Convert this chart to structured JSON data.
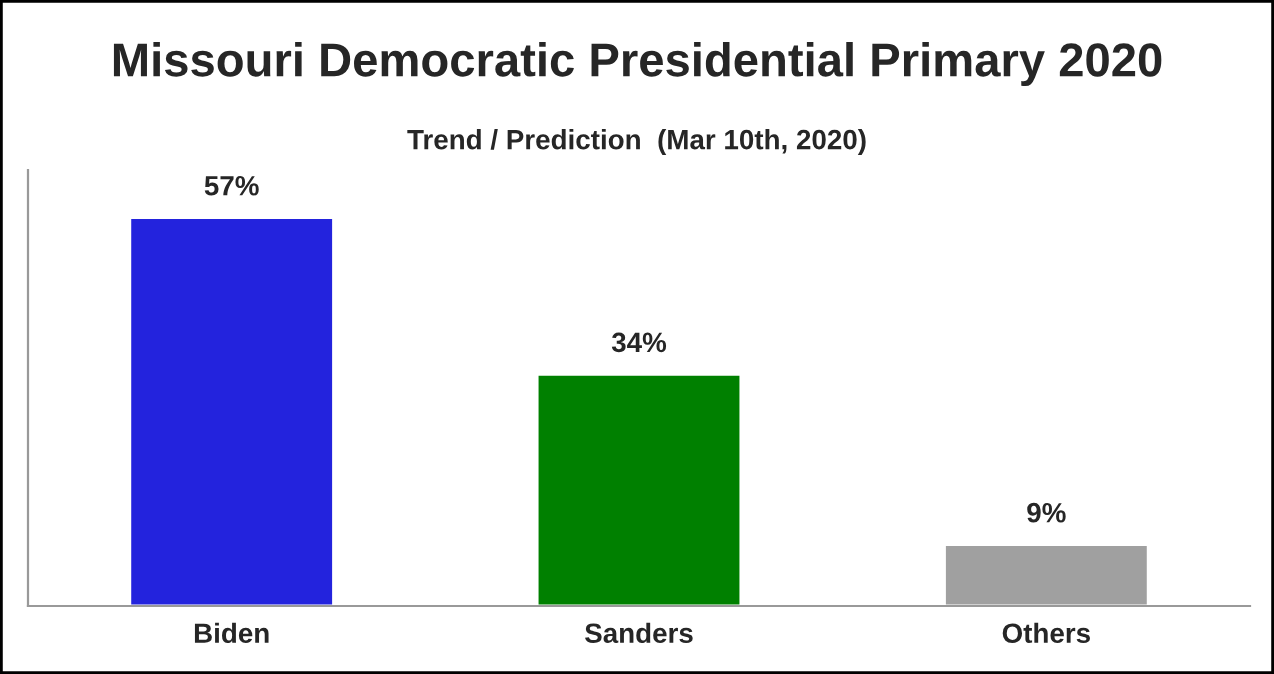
{
  "chart_data": {
    "type": "bar",
    "title": "Missouri Democratic Presidential Primary 2020",
    "subtitle": "Trend / Prediction  (Mar 10th, 2020)",
    "categories": [
      "Biden",
      "Sanders",
      "Others"
    ],
    "values": [
      57,
      34,
      9
    ],
    "colors": [
      "#2323dd",
      "#008000",
      "#a0a0a0"
    ],
    "value_labels": [
      "57%",
      "34%",
      "9%"
    ],
    "ylim": [
      0,
      64
    ],
    "tick_labels": "x"
  }
}
